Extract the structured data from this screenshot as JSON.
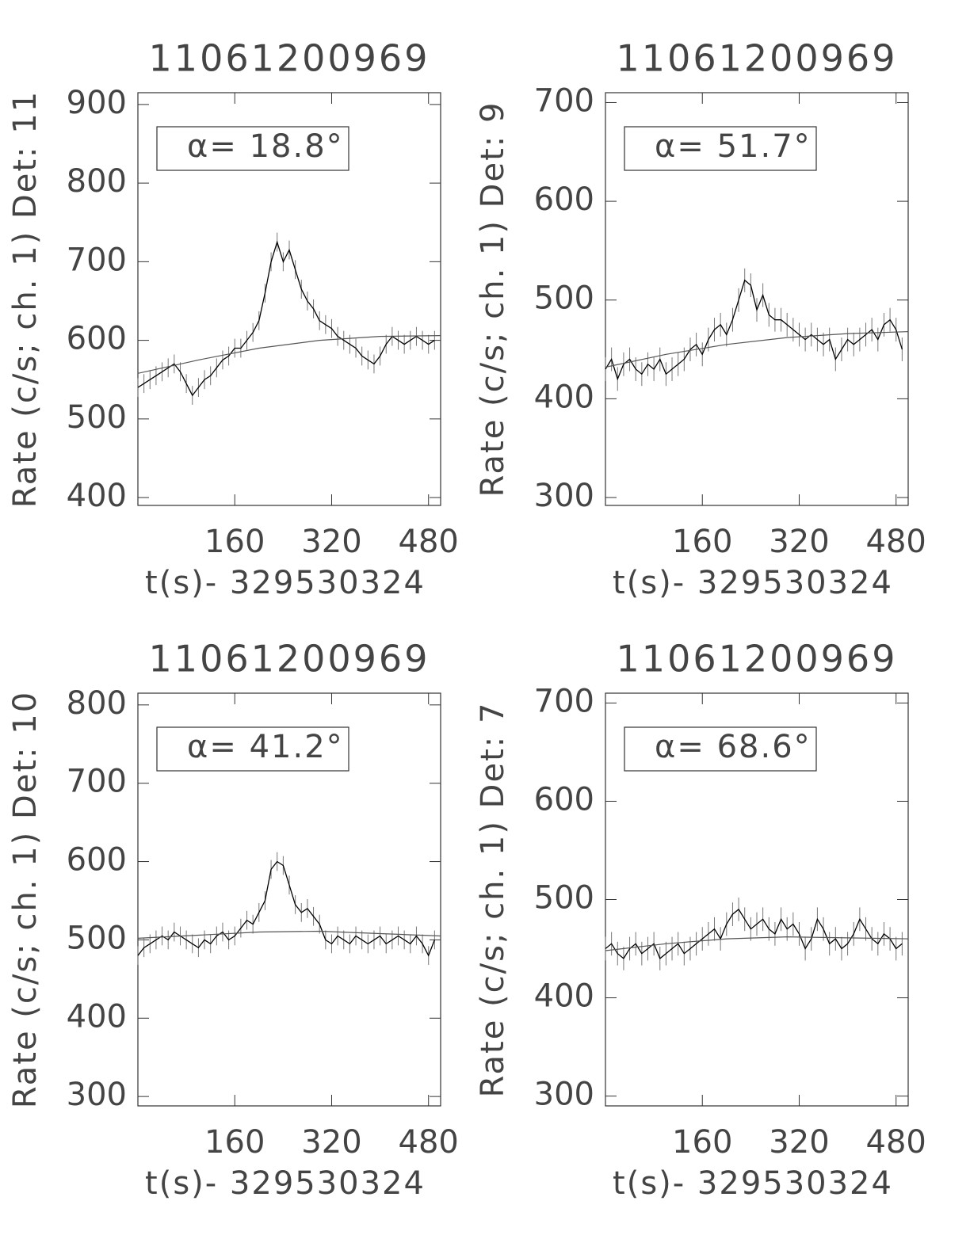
{
  "chart_data": [
    {
      "type": "line",
      "title": "11061200969",
      "xlabel": "t(s)- 329530324",
      "ylabel": "Rate (c/s; ch. 1) Det: 11",
      "annotation": "α= 18.8°",
      "xlim": [
        0,
        500
      ],
      "xticks": [
        160,
        320,
        480
      ],
      "ylim": [
        390,
        915
      ],
      "yticks": [
        400,
        500,
        600,
        700,
        800,
        900
      ],
      "color": "#000000",
      "error": 12,
      "x": [
        0,
        10,
        20,
        30,
        40,
        50,
        60,
        70,
        80,
        90,
        100,
        110,
        120,
        130,
        140,
        150,
        160,
        170,
        180,
        190,
        200,
        210,
        220,
        230,
        240,
        250,
        260,
        270,
        280,
        290,
        300,
        310,
        320,
        330,
        340,
        350,
        360,
        370,
        380,
        390,
        400,
        410,
        420,
        430,
        440,
        450,
        460,
        470,
        480,
        490
      ],
      "values": [
        540,
        545,
        550,
        555,
        560,
        565,
        570,
        560,
        545,
        530,
        540,
        550,
        555,
        565,
        575,
        580,
        590,
        590,
        600,
        610,
        625,
        660,
        700,
        725,
        700,
        715,
        690,
        665,
        650,
        640,
        625,
        620,
        615,
        605,
        600,
        595,
        590,
        580,
        575,
        570,
        580,
        595,
        605,
        600,
        595,
        600,
        605,
        600,
        595,
        600
      ],
      "fit_x": [
        0,
        100,
        200,
        300,
        400,
        500
      ],
      "fit_values": [
        558,
        575,
        590,
        600,
        605,
        606
      ]
    },
    {
      "type": "line",
      "title": "11061200969",
      "xlabel": "t(s)- 329530324",
      "ylabel": "Rate (c/s; ch. 1) Det: 9",
      "annotation": "α= 51.7°",
      "xlim": [
        0,
        500
      ],
      "xticks": [
        160,
        320,
        480
      ],
      "ylim": [
        292,
        710
      ],
      "yticks": [
        300,
        400,
        500,
        600,
        700
      ],
      "color": "#000000",
      "error": 12,
      "x": [
        0,
        10,
        20,
        30,
        40,
        50,
        60,
        70,
        80,
        90,
        100,
        110,
        120,
        130,
        140,
        150,
        160,
        170,
        180,
        190,
        200,
        210,
        220,
        230,
        240,
        250,
        260,
        270,
        280,
        290,
        300,
        310,
        320,
        330,
        340,
        350,
        360,
        370,
        380,
        390,
        400,
        410,
        420,
        430,
        440,
        450,
        460,
        470,
        480,
        490
      ],
      "values": [
        430,
        440,
        420,
        435,
        440,
        430,
        425,
        435,
        430,
        440,
        425,
        430,
        435,
        440,
        450,
        455,
        445,
        460,
        470,
        475,
        465,
        480,
        500,
        520,
        515,
        490,
        505,
        485,
        480,
        480,
        475,
        470,
        465,
        460,
        465,
        460,
        455,
        460,
        440,
        450,
        460,
        455,
        460,
        465,
        470,
        460,
        475,
        480,
        470,
        450
      ],
      "fit_x": [
        0,
        100,
        200,
        300,
        400,
        500
      ],
      "fit_values": [
        432,
        445,
        455,
        462,
        466,
        468
      ]
    },
    {
      "type": "line",
      "title": "11061200969",
      "xlabel": "t(s)- 329530324",
      "ylabel": "Rate (c/s; ch. 1) Det: 10",
      "annotation": "α= 41.2°",
      "xlim": [
        0,
        500
      ],
      "xticks": [
        160,
        320,
        480
      ],
      "ylim": [
        288,
        815
      ],
      "yticks": [
        300,
        400,
        500,
        600,
        700,
        800
      ],
      "color": "#000000",
      "error": 12,
      "x": [
        0,
        10,
        20,
        30,
        40,
        50,
        60,
        70,
        80,
        90,
        100,
        110,
        120,
        130,
        140,
        150,
        160,
        170,
        180,
        190,
        200,
        210,
        220,
        230,
        240,
        250,
        260,
        270,
        280,
        290,
        300,
        310,
        320,
        330,
        340,
        350,
        360,
        370,
        380,
        390,
        400,
        410,
        420,
        430,
        440,
        450,
        460,
        470,
        480,
        490
      ],
      "values": [
        480,
        490,
        495,
        500,
        505,
        500,
        510,
        505,
        500,
        495,
        490,
        500,
        495,
        505,
        510,
        500,
        505,
        515,
        525,
        520,
        535,
        550,
        590,
        600,
        595,
        570,
        545,
        535,
        540,
        530,
        520,
        500,
        495,
        505,
        500,
        495,
        505,
        500,
        495,
        500,
        505,
        495,
        500,
        505,
        500,
        495,
        505,
        495,
        480,
        500
      ],
      "fit_x": [
        0,
        100,
        200,
        300,
        400,
        500
      ],
      "fit_values": [
        502,
        506,
        510,
        511,
        508,
        505
      ]
    },
    {
      "type": "line",
      "title": "11061200969",
      "xlabel": "t(s)- 329530324",
      "ylabel": "Rate (c/s; ch. 1) Det: 7",
      "annotation": "α= 68.6°",
      "xlim": [
        0,
        500
      ],
      "xticks": [
        160,
        320,
        480
      ],
      "ylim": [
        290,
        710
      ],
      "yticks": [
        300,
        400,
        500,
        600,
        700
      ],
      "color": "#000000",
      "error": 12,
      "x": [
        0,
        10,
        20,
        30,
        40,
        50,
        60,
        70,
        80,
        90,
        100,
        110,
        120,
        130,
        140,
        150,
        160,
        170,
        180,
        190,
        200,
        210,
        220,
        230,
        240,
        250,
        260,
        270,
        280,
        290,
        300,
        310,
        320,
        330,
        340,
        350,
        360,
        370,
        380,
        390,
        400,
        410,
        420,
        430,
        440,
        450,
        460,
        470,
        480,
        490
      ],
      "values": [
        450,
        455,
        445,
        440,
        450,
        455,
        445,
        450,
        455,
        440,
        445,
        450,
        455,
        445,
        450,
        455,
        460,
        465,
        470,
        460,
        475,
        485,
        490,
        480,
        470,
        475,
        480,
        470,
        465,
        480,
        470,
        475,
        465,
        450,
        460,
        480,
        470,
        455,
        460,
        450,
        455,
        465,
        480,
        470,
        460,
        455,
        465,
        460,
        450,
        455
      ],
      "fit_x": [
        0,
        100,
        200,
        300,
        400,
        500
      ],
      "fit_values": [
        448,
        455,
        460,
        462,
        461,
        460
      ]
    }
  ]
}
